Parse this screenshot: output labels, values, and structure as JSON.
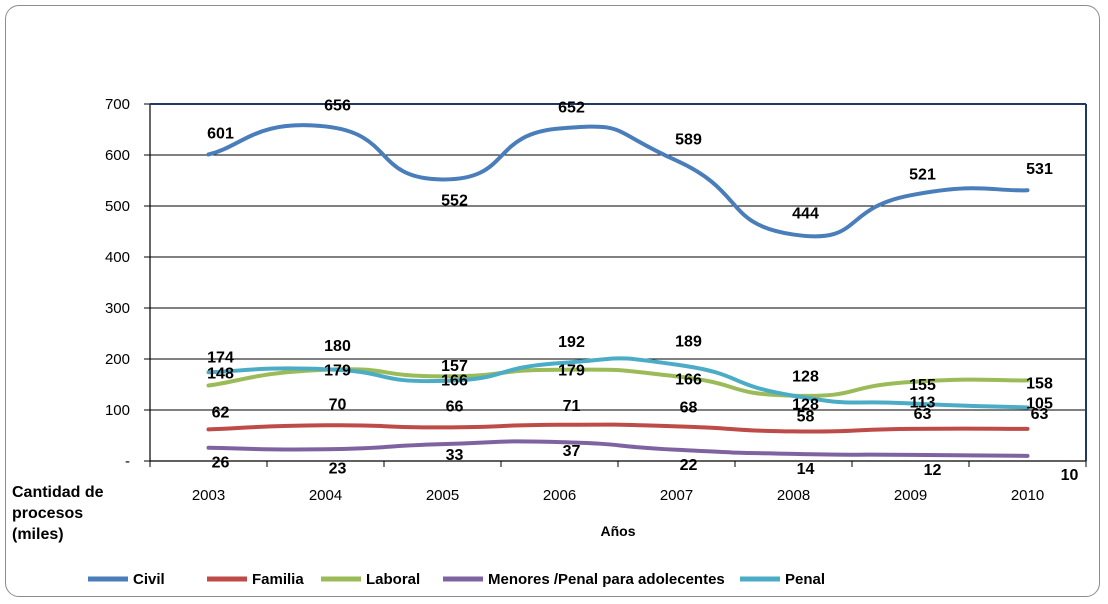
{
  "chart_data": {
    "type": "line",
    "title": "",
    "xlabel": "Años",
    "ylabel": "Cantidad de procesos (miles)",
    "ylim": [
      0,
      700
    ],
    "yticks": [
      "-",
      "100",
      "200",
      "300",
      "400",
      "500",
      "600",
      "700"
    ],
    "categories": [
      "2003",
      "2004",
      "2005",
      "2006",
      "2007",
      "2008",
      "2009",
      "2010"
    ],
    "grid": true,
    "smooth": true,
    "legend_position": "bottom",
    "series": [
      {
        "name": "Civil",
        "color": "#4a7ebb",
        "values": [
          601,
          656,
          552,
          652,
          589,
          444,
          521,
          531
        ]
      },
      {
        "name": "Familia",
        "color": "#be4b48",
        "values": [
          62,
          70,
          66,
          71,
          68,
          58,
          63,
          63
        ]
      },
      {
        "name": "Laboral",
        "color": "#9bbb59",
        "values": [
          148,
          179,
          166,
          179,
          166,
          128,
          155,
          158
        ]
      },
      {
        "name": "Menores /Penal para adolecentes",
        "color": "#7f63a1",
        "values": [
          26,
          23,
          33,
          37,
          22,
          14,
          12,
          10
        ]
      },
      {
        "name": "Penal",
        "color": "#4bacc6",
        "values": [
          174,
          180,
          157,
          192,
          189,
          128,
          113,
          105
        ]
      }
    ]
  }
}
